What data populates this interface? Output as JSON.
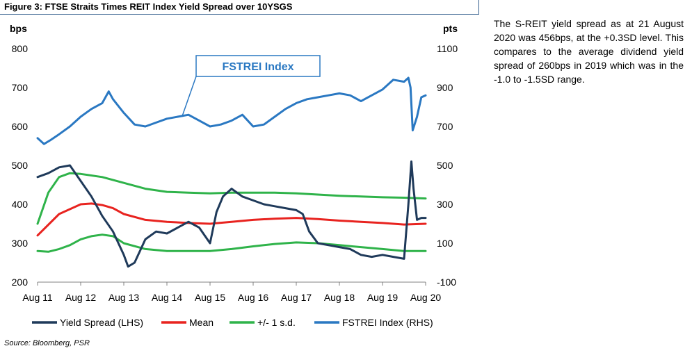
{
  "header": {
    "title": "Figure 3: FTSE Straits Times REIT Index Yield Spread over 10YSGS"
  },
  "footer": {
    "source": "Source: Bloomberg, PSR"
  },
  "sidebar": {
    "text": "The S-REIT yield spread as at 21 August 2020 was 456bps, at the +0.3SD level. This compares to the average dividend yield spread of 260bps in 2019 which was in the -1.0 to -1.5SD range."
  },
  "colors": {
    "yield_spread": "#1f3a5a",
    "mean": "#e8231f",
    "sd": "#2fb34a",
    "fstrei": "#2a78c2",
    "callout_border": "#2a78c2",
    "callout_text": "#2a78c2"
  },
  "chart_data": {
    "type": "line",
    "title": "Figure 3: FTSE Straits Times REIT Index Yield Spread over 10YSGS",
    "left_axis": {
      "unit": "bps",
      "ylim": [
        200,
        800
      ],
      "ticks": [
        "200",
        "300",
        "400",
        "500",
        "600",
        "700",
        "800"
      ]
    },
    "right_axis": {
      "unit": "pts",
      "ylim": [
        -100,
        1100
      ],
      "ticks": [
        "-100",
        "100",
        "300",
        "500",
        "700",
        "900",
        "1100"
      ]
    },
    "x_axis": {
      "ticks": [
        "Aug 11",
        "Aug 12",
        "Aug 13",
        "Aug 14",
        "Aug 15",
        "Aug 16",
        "Aug 17",
        "Aug 18",
        "Aug 19",
        "Aug 20"
      ],
      "tick_years": [
        2011,
        2012,
        2013,
        2014,
        2015,
        2016,
        2017,
        2018,
        2019,
        2020
      ]
    },
    "grid": false,
    "legend_position": "bottom",
    "annotation": {
      "label": "FSTREI Index",
      "points_to_year": 2014.35
    },
    "series": [
      {
        "name": "Yield Spread (LHS)",
        "axis": "left",
        "x": [
          2011.0,
          2011.25,
          2011.5,
          2011.75,
          2012.0,
          2012.25,
          2012.5,
          2012.75,
          2013.0,
          2013.1,
          2013.25,
          2013.5,
          2013.75,
          2014.0,
          2014.25,
          2014.5,
          2014.75,
          2015.0,
          2015.15,
          2015.3,
          2015.5,
          2015.75,
          2016.0,
          2016.25,
          2016.5,
          2016.75,
          2017.0,
          2017.15,
          2017.3,
          2017.5,
          2017.75,
          2018.0,
          2018.25,
          2018.5,
          2018.75,
          2019.0,
          2019.25,
          2019.5,
          2019.6,
          2019.67,
          2019.72,
          2019.8,
          2019.9,
          2020.0
        ],
        "values": [
          470,
          480,
          495,
          500,
          460,
          420,
          370,
          330,
          270,
          240,
          250,
          310,
          330,
          325,
          340,
          355,
          340,
          300,
          380,
          420,
          440,
          420,
          410,
          400,
          395,
          390,
          385,
          375,
          330,
          300,
          295,
          290,
          285,
          270,
          265,
          270,
          265,
          260,
          400,
          510,
          440,
          360,
          365,
          365
        ]
      },
      {
        "name": "Mean",
        "axis": "left",
        "x": [
          2011.0,
          2011.5,
          2012.0,
          2012.25,
          2012.5,
          2012.75,
          2013.0,
          2013.5,
          2014.0,
          2014.5,
          2015.0,
          2015.5,
          2016.0,
          2016.5,
          2017.0,
          2017.5,
          2018.0,
          2018.5,
          2019.0,
          2019.5,
          2020.0
        ],
        "values": [
          320,
          375,
          400,
          402,
          398,
          390,
          375,
          360,
          355,
          352,
          350,
          355,
          360,
          363,
          365,
          362,
          358,
          355,
          352,
          348,
          350
        ]
      },
      {
        "name": "+/- 1 s.d.",
        "axis": "left",
        "x": [
          2011.0,
          2011.25,
          2011.5,
          2011.75,
          2012.0,
          2012.5,
          2013.0,
          2013.5,
          2014.0,
          2014.5,
          2015.0,
          2015.5,
          2016.0,
          2016.5,
          2017.0,
          2017.5,
          2018.0,
          2018.5,
          2019.0,
          2019.5,
          2020.0
        ],
        "values": [
          350,
          430,
          470,
          480,
          478,
          470,
          455,
          440,
          432,
          430,
          428,
          430,
          430,
          430,
          428,
          425,
          422,
          420,
          418,
          417,
          415
        ]
      },
      {
        "name": "+/- 1 s.d. (lower)",
        "axis": "left",
        "x": [
          2011.0,
          2011.25,
          2011.5,
          2011.75,
          2012.0,
          2012.25,
          2012.5,
          2012.75,
          2013.0,
          2013.5,
          2014.0,
          2014.5,
          2015.0,
          2015.5,
          2016.0,
          2016.5,
          2017.0,
          2017.5,
          2018.0,
          2018.5,
          2019.0,
          2019.5,
          2020.0
        ],
        "values": [
          280,
          278,
          285,
          295,
          310,
          318,
          322,
          318,
          300,
          285,
          280,
          280,
          280,
          285,
          292,
          298,
          302,
          300,
          295,
          290,
          285,
          280,
          280
        ]
      },
      {
        "name": "FSTREI Index (RHS)",
        "axis": "right",
        "x": [
          2011.0,
          2011.15,
          2011.3,
          2011.5,
          2011.75,
          2012.0,
          2012.25,
          2012.5,
          2012.65,
          2012.75,
          2013.0,
          2013.25,
          2013.5,
          2013.75,
          2014.0,
          2014.25,
          2014.5,
          2014.75,
          2015.0,
          2015.25,
          2015.5,
          2015.75,
          2016.0,
          2016.25,
          2016.5,
          2016.75,
          2017.0,
          2017.25,
          2017.5,
          2017.75,
          2018.0,
          2018.25,
          2018.5,
          2018.75,
          2019.0,
          2019.25,
          2019.5,
          2019.6,
          2019.65,
          2019.7,
          2019.8,
          2019.9,
          2020.0
        ],
        "values": [
          640,
          610,
          630,
          660,
          700,
          750,
          790,
          820,
          880,
          840,
          770,
          710,
          700,
          720,
          740,
          750,
          760,
          730,
          700,
          710,
          730,
          760,
          700,
          710,
          750,
          790,
          820,
          840,
          850,
          860,
          870,
          860,
          830,
          860,
          890,
          940,
          930,
          950,
          900,
          680,
          750,
          850,
          860
        ]
      }
    ]
  }
}
